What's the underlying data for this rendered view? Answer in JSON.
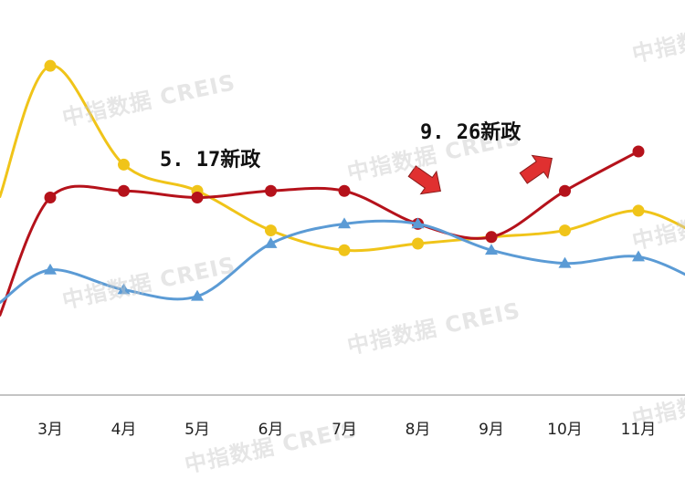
{
  "watermark": "中指数据 CREIS",
  "chart_data": {
    "type": "line",
    "categories": [
      "3月",
      "4月",
      "5月",
      "6月",
      "7月",
      "8月",
      "9月",
      "10月",
      "11月"
    ],
    "series": [
      {
        "color": "#f0c419",
        "marker": "circle",
        "values": [
          0.5,
          0.35,
          0.31,
          0.25,
          0.22,
          0.23,
          0.24,
          0.25,
          0.28
        ]
      },
      {
        "color": "#b5121b",
        "marker": "circle",
        "values": [
          0.3,
          0.31,
          0.3,
          0.31,
          0.31,
          0.26,
          0.24,
          0.31,
          0.37
        ]
      },
      {
        "color": "#5b9bd5",
        "marker": "triangle",
        "values": [
          0.19,
          0.16,
          0.15,
          0.23,
          0.26,
          0.26,
          0.22,
          0.2,
          0.21
        ]
      }
    ],
    "ylim": [
      0,
      0.6
    ],
    "grid": false,
    "legend": "none",
    "annotations": [
      {
        "text": "5. 17新政",
        "at": "5月"
      },
      {
        "text": "9. 26新政",
        "at": "8月"
      }
    ],
    "arrow_color": "#e03030"
  }
}
